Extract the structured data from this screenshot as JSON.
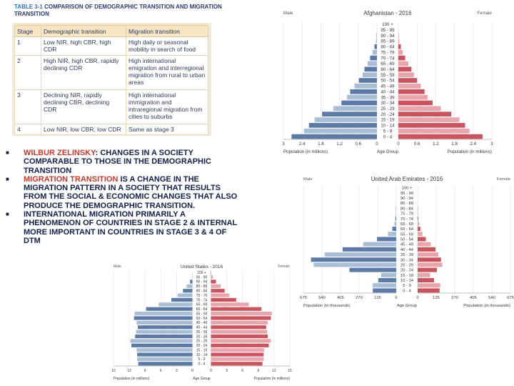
{
  "table": {
    "title_num": "TABLE 3-1",
    "title_text": "COMPARISON OF DEMOGRAPHIC TRANSITION AND MIGRATION TRANSITION",
    "headers": [
      "Stage",
      "Demographic transition",
      "Migration transition"
    ],
    "rows": [
      {
        "stage": "1",
        "demo": "Low NIR, high CBR, high CDR",
        "migr": "High daily or seasonal mobility in search of food"
      },
      {
        "stage": "2",
        "demo": "High NIR, high CBR, rapidly declining CDR",
        "migr": "High international emigration and interregional migration from rural to urban areas"
      },
      {
        "stage": "3",
        "demo": "Declining NIR, rapidly declining CBR, declining CDR",
        "migr": "High international immigration and intraregional migration from cities to suburbs"
      },
      {
        "stage": "4",
        "demo": "Low NIR, low CBR, low CDR",
        "migr": "Same as stage 3"
      }
    ]
  },
  "bullets": {
    "b1_hl": "WILBUR ZELINSKY",
    "b1_rest": ": CHANGES IN A SOCIETY COMPARABLE TO THOSE IN THE DEMOGRAPHIC TRANSITION",
    "b2_hl": "MIGRATION TRANSITION",
    "b2_rest": " IS A CHANGE IN THE MIGRATION PATTERN IN A SOCIETY THAT RESULTS FROM THE SOCIAL & ECONOMIC CHANGES THAT ALSO PRODUCE THE DEMOGRAPHIC TRANSITION.",
    "b3": "INTERNATIONAL MIGRATION PRIMARILY A PHENOMENON OF COUNTRIES IN STAGE 2 & INTERNAL MORE IMPORTANT IN COUNTRIES IN STAGE 3 & 4 OF DTM"
  },
  "colors": {
    "male": "#5b7aa6",
    "male_light": "#a9bdd6",
    "female": "#c9545d",
    "female_light": "#e8a6ac",
    "table_header": "#f6e6c3",
    "table_bg": "#f3ead6",
    "title": "#2a3c6e",
    "bullet_text": "#10204a",
    "highlight": "#c0392b"
  },
  "chart_data": [
    {
      "type": "bar",
      "title": "Afghanistan - 2016",
      "left_label": "Male",
      "right_label": "Female",
      "xlabel_left": "Population (in millions)",
      "xlabel_center": "Age Group",
      "xlabel_right": "Population (in millions)",
      "categories": [
        "100 +",
        "95 - 99",
        "90 - 94",
        "85 - 89",
        "80 - 84",
        "75 - 79",
        "70 - 74",
        "65 - 69",
        "60 - 64",
        "55 - 59",
        "50 - 54",
        "45 - 49",
        "40 - 44",
        "35 - 39",
        "30 - 34",
        "25 - 29",
        "20 - 24",
        "15 - 19",
        "10 - 14",
        "5 - 9",
        "0 - 4"
      ],
      "x_ticks_left": [
        "3",
        "2.4",
        "1.8",
        "1.2",
        "0.6",
        "0"
      ],
      "x_ticks_right": [
        "0",
        "0.6",
        "1.2",
        "1.8",
        "2.4",
        "3"
      ],
      "xmax": 3,
      "series": [
        {
          "name": "Male",
          "values": [
            0,
            0,
            0.01,
            0.03,
            0.08,
            0.14,
            0.22,
            0.3,
            0.4,
            0.46,
            0.58,
            0.72,
            0.86,
            0.96,
            1.14,
            1.4,
            1.76,
            2.0,
            2.18,
            2.34,
            2.74
          ]
        },
        {
          "name": "Female",
          "values": [
            0,
            0,
            0.01,
            0.03,
            0.08,
            0.14,
            0.22,
            0.32,
            0.42,
            0.5,
            0.6,
            0.72,
            0.84,
            0.94,
            1.1,
            1.36,
            1.7,
            1.96,
            2.14,
            2.28,
            2.7
          ]
        }
      ]
    },
    {
      "type": "bar",
      "title": "United Arab Emirates - 2016",
      "left_label": "Male",
      "right_label": "Female",
      "xlabel_left": "Population (in thousands)",
      "xlabel_center": "Age Group",
      "xlabel_right": "Population (in thousands)",
      "categories": [
        "100 +",
        "95 - 99",
        "90 - 94",
        "85 - 89",
        "80 - 84",
        "75 - 79",
        "70 - 74",
        "65 - 69",
        "60 - 64",
        "55 - 59",
        "50 - 54",
        "45 - 49",
        "40 - 44",
        "35 - 39",
        "30 - 34",
        "25 - 29",
        "20 - 24",
        "15 - 19",
        "10 - 14",
        "5 - 9",
        "0 - 4"
      ],
      "x_ticks_left": [
        "675",
        "540",
        "405",
        "270",
        "135",
        "0"
      ],
      "x_ticks_right": [
        "0",
        "135",
        "270",
        "405",
        "540",
        "675"
      ],
      "xmax": 675,
      "series": [
        {
          "name": "Male",
          "values": [
            0,
            0,
            0,
            1,
            2,
            3,
            6,
            12,
            28,
            60,
            140,
            240,
            390,
            520,
            620,
            600,
            340,
            110,
            130,
            170,
            170
          ]
        },
        {
          "name": "Female",
          "values": [
            0,
            0,
            0,
            1,
            2,
            3,
            5,
            10,
            20,
            35,
            60,
            95,
            130,
            150,
            170,
            180,
            140,
            90,
            120,
            165,
            160
          ]
        }
      ]
    },
    {
      "type": "bar",
      "title": "United States - 2016",
      "left_label": "Male",
      "right_label": "Female",
      "xlabel_left": "Population (in millions)",
      "xlabel_center": "Age Group",
      "xlabel_right": "Population (in millions)",
      "categories": [
        "100 +",
        "95 - 99",
        "90 - 94",
        "85 - 89",
        "80 - 84",
        "75 - 79",
        "70 - 74",
        "65 - 69",
        "60 - 64",
        "55 - 59",
        "50 - 54",
        "45 - 49",
        "40 - 44",
        "35 - 39",
        "30 - 34",
        "25 - 29",
        "20 - 24",
        "15 - 19",
        "10 - 14",
        "5 - 9",
        "0 - 4"
      ],
      "x_ticks_left": [
        "15",
        "12",
        "9",
        "6",
        "3",
        "0"
      ],
      "x_ticks_right": [
        "0",
        "3",
        "6",
        "9",
        "12",
        "15"
      ],
      "xmax": 15,
      "series": [
        {
          "name": "Male",
          "values": [
            0.01,
            0.1,
            0.45,
            1.1,
            1.8,
            2.8,
            4.0,
            6.4,
            8.8,
            11.0,
            11.1,
            10.6,
            10.4,
            10.7,
            10.9,
            11.8,
            11.6,
            10.6,
            10.5,
            10.5,
            10.3
          ]
        },
        {
          "name": "Female",
          "values": [
            0.06,
            0.35,
            0.95,
            1.85,
            2.6,
            3.5,
            4.8,
            7.2,
            9.6,
            11.6,
            11.4,
            10.8,
            10.5,
            10.7,
            10.8,
            11.4,
            11.0,
            10.1,
            10.0,
            10.0,
            9.8
          ]
        }
      ]
    }
  ]
}
